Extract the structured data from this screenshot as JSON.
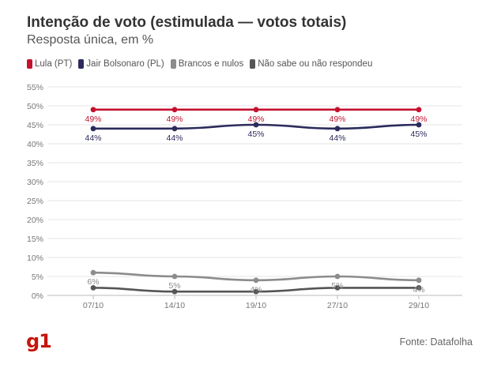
{
  "header": {
    "title": "Intenção de voto (estimulada — votos totais)",
    "subtitle": "Resposta única, em %"
  },
  "legend": [
    {
      "label": "Lula (PT)",
      "color": "#c4122e"
    },
    {
      "label": "Jair Bolsonaro (PL)",
      "color": "#2b2b5c"
    },
    {
      "label": "Brancos e nulos",
      "color": "#8c8c8c"
    },
    {
      "label": "Não sabe ou não respondeu",
      "color": "#555555"
    }
  ],
  "footer": {
    "logo": "g1",
    "logo_color": "#c4170c",
    "source": "Fonte: Datafolha"
  },
  "chart_data": {
    "type": "line",
    "categories": [
      "07/10",
      "14/10",
      "19/10",
      "27/10",
      "29/10"
    ],
    "ylim": [
      0,
      55
    ],
    "yticks": [
      0,
      5,
      10,
      15,
      20,
      25,
      30,
      35,
      40,
      45,
      50,
      55
    ],
    "ytick_suffix": "%",
    "grid": true,
    "legend_position": "top-left",
    "series": [
      {
        "name": "Lula (PT)",
        "color": "#c4122e",
        "values": [
          49,
          49,
          49,
          49,
          49
        ],
        "labels": [
          "49%",
          "49%",
          "49%",
          "49%",
          "49%"
        ],
        "label_position": "below"
      },
      {
        "name": "Jair Bolsonaro (PL)",
        "color": "#2b2b5c",
        "values": [
          44,
          44,
          45,
          44,
          45
        ],
        "labels": [
          "44%",
          "44%",
          "45%",
          "44%",
          "45%"
        ],
        "label_position": "below"
      },
      {
        "name": "Brancos e nulos",
        "color": "#8c8c8c",
        "values": [
          6,
          5,
          4,
          5,
          4
        ],
        "labels": [
          "6%",
          "5%",
          "4%",
          "5%",
          "4%"
        ],
        "label_position": "below"
      },
      {
        "name": "Não sabe ou não respondeu",
        "color": "#555555",
        "values": [
          2,
          1,
          1,
          2,
          2
        ],
        "labels": [],
        "label_position": "none"
      }
    ]
  }
}
